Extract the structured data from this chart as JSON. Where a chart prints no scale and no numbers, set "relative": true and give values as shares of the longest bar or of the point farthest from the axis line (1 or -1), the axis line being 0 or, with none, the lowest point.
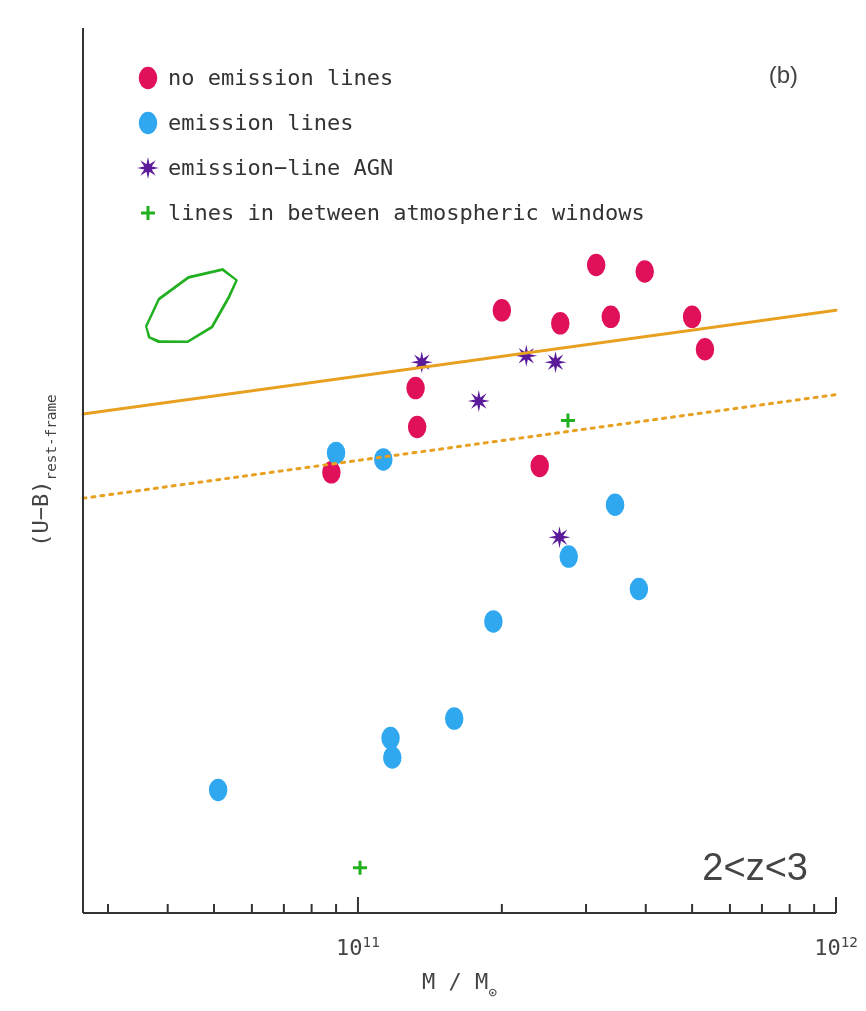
{
  "chart_data": {
    "type": "scatter",
    "relative": true,
    "log": "x",
    "grid": false,
    "legend": "top left",
    "xlabel": "M / M$_{⊙}$",
    "ylabel": "(U−B)$_{rest-frame}$",
    "xlim": [
      26600000000.0,
      1000000000000.0
    ],
    "xticks": [
      {
        "value": 30000000000.0,
        "label": null
      },
      {
        "value": 40000000000.0,
        "label": null
      },
      {
        "value": 50000000000.0,
        "label": null
      },
      {
        "value": 60000000000.0,
        "label": null
      },
      {
        "value": 70000000000.0,
        "label": null
      },
      {
        "value": 80000000000.0,
        "label": null
      },
      {
        "value": 90000000000.0,
        "label": null
      },
      {
        "value": 100000000000.0,
        "label": "10$^{11}$"
      },
      {
        "value": 200000000000.0,
        "label": null
      },
      {
        "value": 300000000000.0,
        "label": null
      },
      {
        "value": 400000000000.0,
        "label": null
      },
      {
        "value": 500000000000.0,
        "label": null
      },
      {
        "value": 600000000000.0,
        "label": null
      },
      {
        "value": 700000000000.0,
        "label": null
      },
      {
        "value": 800000000000.0,
        "label": null
      },
      {
        "value": 900000000000.0,
        "label": null
      },
      {
        "value": 1000000000000.0,
        "label": "10$^{12}$"
      }
    ],
    "annotations": [
      "(b)",
      "2<z<3"
    ],
    "series": [
      {
        "name": "no emission lines",
        "color": "#e0105a",
        "marker": "circle",
        "x": [
          88000000000.0,
          132000000000.0,
          133000000000.0,
          200000000000.0,
          240000000000.0,
          265000000000.0,
          315000000000.0,
          338000000000.0,
          398000000000.0,
          500000000000.0,
          532000000000.0
        ],
        "values": [
          0.68,
          0.81,
          0.75,
          0.93,
          0.69,
          0.91,
          1.0,
          0.92,
          0.99,
          0.92,
          0.87
        ]
      },
      {
        "name": "emission lines",
        "color": "#30a8f0",
        "marker": "circle",
        "x": [
          90000000000.0,
          113000000000.0,
          51000000000.0,
          117000000000.0,
          118000000000.0,
          159000000000.0,
          192000000000.0,
          276000000000.0,
          345000000000.0,
          387000000000.0
        ],
        "values": [
          0.71,
          0.7,
          0.19,
          0.27,
          0.24,
          0.3,
          0.45,
          0.55,
          0.63,
          0.5
        ]
      },
      {
        "name": "emission−line AGN",
        "color": "#5a1a9a",
        "marker": "star",
        "x": [
          136000000000.0,
          179000000000.0,
          225000000000.0,
          259000000000.0,
          264000000000.0
        ],
        "values": [
          0.85,
          0.79,
          0.86,
          0.85,
          0.58
        ]
      },
      {
        "name": "lines in between atmospheric windows",
        "color": "#20b020",
        "marker": "cross",
        "x": [
          101000000000.0,
          275000000000.0
        ],
        "values": [
          0.07,
          0.76
        ]
      },
      {
        "type": "line",
        "color": "#e8a020",
        "line_style": "solid",
        "marker": "none",
        "x": [
          26600000000.0,
          1000000000000.0
        ],
        "values": [
          0.77,
          0.93
        ]
      },
      {
        "type": "line",
        "color": "#e8a020",
        "line_style": "dotted",
        "marker": "none",
        "x": [
          26600000000.0,
          1000000000000.0
        ],
        "values": [
          0.64,
          0.8
        ]
      }
    ]
  }
}
